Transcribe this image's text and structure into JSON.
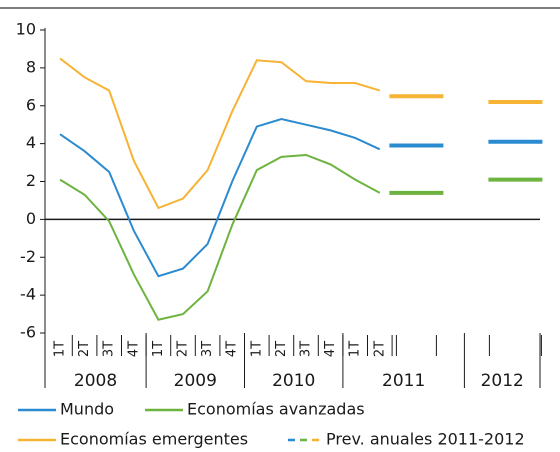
{
  "chart_data": {
    "type": "line",
    "categories": [
      "1T",
      "2T",
      "3T",
      "4T",
      "1T",
      "2T",
      "3T",
      "4T",
      "1T",
      "2T",
      "3T",
      "4T",
      "1T",
      "2T"
    ],
    "years": [
      "2008",
      "2009",
      "2010",
      "2011",
      "2012"
    ],
    "series": [
      {
        "name": "Mundo",
        "color": "#2b8bd0",
        "values": [
          4.5,
          3.6,
          2.5,
          -0.6,
          -3.0,
          -2.6,
          -1.3,
          2.0,
          4.9,
          5.3,
          5.0,
          4.7,
          4.3,
          3.7
        ],
        "forecast": [
          3.9,
          4.1
        ]
      },
      {
        "name": "Economías avanzadas",
        "color": "#6db33f",
        "values": [
          2.1,
          1.3,
          -0.1,
          -2.9,
          -5.3,
          -5.0,
          -3.8,
          -0.3,
          2.6,
          3.3,
          3.4,
          2.9,
          2.1,
          1.4
        ],
        "forecast": [
          1.4,
          2.1
        ]
      },
      {
        "name": "Economías emergentes",
        "color": "#f7b334",
        "values": [
          8.5,
          7.5,
          6.8,
          3.1,
          0.6,
          1.1,
          2.6,
          5.7,
          8.4,
          8.3,
          7.3,
          7.2,
          7.2,
          6.8
        ],
        "forecast": [
          6.5,
          6.2
        ]
      }
    ],
    "forecast_name": "Prev. anuales 2011-2012",
    "ylim": [
      -6,
      10
    ],
    "yticks": [
      -6,
      -4,
      -2,
      0,
      2,
      4,
      6,
      8,
      10
    ]
  }
}
